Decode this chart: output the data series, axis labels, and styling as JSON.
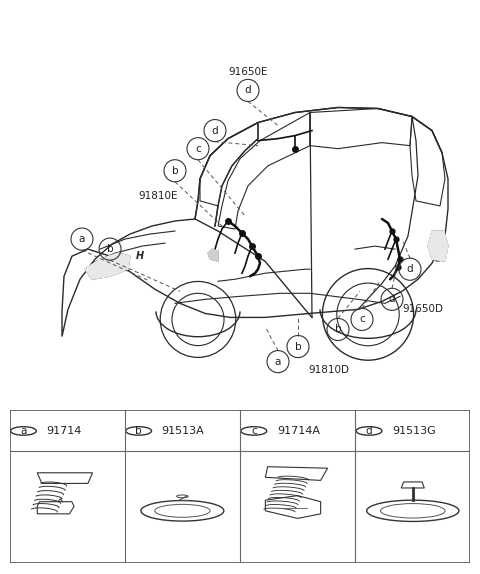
{
  "bg_color": "#ffffff",
  "diagram_labels": [
    {
      "letter": "a",
      "part": "91714"
    },
    {
      "letter": "b",
      "part": "91513A"
    },
    {
      "letter": "c",
      "part": "91714A"
    },
    {
      "letter": "d",
      "part": "91513G"
    }
  ],
  "label_91650E": "91650E",
  "label_91810E": "91810E",
  "label_91810D": "91810D",
  "label_91650D": "91650D",
  "figure_width": 4.8,
  "figure_height": 5.74
}
